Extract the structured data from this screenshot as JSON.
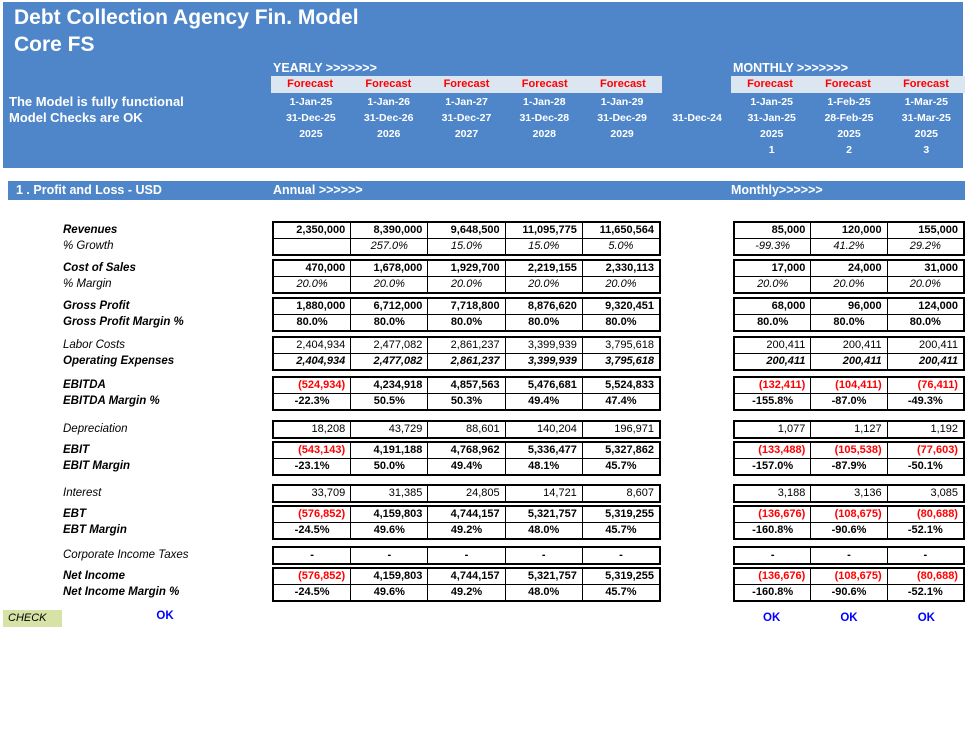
{
  "colors": {
    "header_blue": "#4E86C9",
    "band_bg": "#DCE6F1",
    "forecast_red": "#FF0000",
    "negative_red": "#FF0000",
    "ok_blue": "#0000FF",
    "check_green": "#D7E3A6"
  },
  "header": {
    "title_line1": "Debt Collection Agency Fin. Model",
    "title_line2": "Core FS",
    "status_line1": "The Model is fully functional",
    "status_line2": "Model Checks are OK",
    "yearly_label": "YEARLY >>>>>>>",
    "monthly_label": "MONTHLY >>>>>>>",
    "prior_period_end": "31-Dec-24",
    "yearly_columns": [
      {
        "forecast": "Forecast",
        "start": "1-Jan-25",
        "end": "31-Dec-25",
        "year": "2025"
      },
      {
        "forecast": "Forecast",
        "start": "1-Jan-26",
        "end": "31-Dec-26",
        "year": "2026"
      },
      {
        "forecast": "Forecast",
        "start": "1-Jan-27",
        "end": "31-Dec-27",
        "year": "2027"
      },
      {
        "forecast": "Forecast",
        "start": "1-Jan-28",
        "end": "31-Dec-28",
        "year": "2028"
      },
      {
        "forecast": "Forecast",
        "start": "1-Jan-29",
        "end": "31-Dec-29",
        "year": "2029"
      }
    ],
    "monthly_columns": [
      {
        "forecast": "Forecast",
        "start": "1-Jan-25",
        "end": "31-Jan-25",
        "year": "2025",
        "period": "1"
      },
      {
        "forecast": "Forecast",
        "start": "1-Feb-25",
        "end": "28-Feb-25",
        "year": "2025",
        "period": "2"
      },
      {
        "forecast": "Forecast",
        "start": "1-Mar-25",
        "end": "31-Mar-25",
        "year": "2025",
        "period": "3"
      }
    ]
  },
  "section": {
    "title": "1 . Profit and Loss - USD",
    "annual_label": "Annual >>>>>>",
    "monthly_label": "Monthly>>>>>>"
  },
  "table": {
    "groups": [
      {
        "rows": [
          {
            "label": "Revenues",
            "label_style": "bi",
            "value_style": "b",
            "annual": [
              "2,350,000",
              "8,390,000",
              "9,648,500",
              "11,095,775",
              "11,650,564"
            ],
            "monthly": [
              "85,000",
              "120,000",
              "155,000"
            ]
          },
          {
            "label": "% Growth",
            "label_style": "i",
            "value_style": "i",
            "annual": [
              "",
              "257.0%",
              "15.0%",
              "15.0%",
              "5.0%"
            ],
            "monthly": [
              "-99.3%",
              "41.2%",
              "29.2%"
            ]
          }
        ]
      },
      {
        "rows": [
          {
            "label": "Cost of Sales",
            "label_style": "bi",
            "value_style": "b",
            "annual": [
              "470,000",
              "1,678,000",
              "1,929,700",
              "2,219,155",
              "2,330,113"
            ],
            "monthly": [
              "17,000",
              "24,000",
              "31,000"
            ]
          },
          {
            "label": "% Margin",
            "label_style": "i",
            "value_style": "i",
            "annual": [
              "20.0%",
              "20.0%",
              "20.0%",
              "20.0%",
              "20.0%"
            ],
            "monthly": [
              "20.0%",
              "20.0%",
              "20.0%"
            ]
          }
        ]
      },
      {
        "rows": [
          {
            "label": "Gross Profit",
            "label_style": "bi",
            "value_style": "b",
            "annual": [
              "1,880,000",
              "6,712,000",
              "7,718,800",
              "8,876,620",
              "9,320,451"
            ],
            "monthly": [
              "68,000",
              "96,000",
              "124,000"
            ]
          },
          {
            "label": "Gross Profit Margin %",
            "label_style": "bi",
            "value_style": "b",
            "annual": [
              "80.0%",
              "80.0%",
              "80.0%",
              "80.0%",
              "80.0%"
            ],
            "monthly": [
              "80.0%",
              "80.0%",
              "80.0%"
            ]
          }
        ]
      },
      {
        "rows": [
          {
            "label": "Labor Costs",
            "label_style": "i",
            "value_style": "r",
            "annual": [
              "2,404,934",
              "2,477,082",
              "2,861,237",
              "3,399,939",
              "3,795,618"
            ],
            "monthly": [
              "200,411",
              "200,411",
              "200,411"
            ]
          },
          {
            "label": "Operating Expenses",
            "label_style": "bi",
            "value_style": "bi",
            "annual": [
              "2,404,934",
              "2,477,082",
              "2,861,237",
              "3,399,939",
              "3,795,618"
            ],
            "monthly": [
              "200,411",
              "200,411",
              "200,411"
            ]
          }
        ]
      },
      {
        "rows": [
          {
            "label": "EBITDA",
            "label_style": "bi",
            "value_style": "b",
            "annual": [
              "(524,934)",
              "4,234,918",
              "4,857,563",
              "5,476,681",
              "5,524,833"
            ],
            "monthly": [
              "(132,411)",
              "(104,411)",
              "(76,411)"
            ]
          },
          {
            "label": "EBITDA Margin %",
            "label_style": "bi",
            "value_style": "b",
            "annual": [
              "-22.3%",
              "50.5%",
              "50.3%",
              "49.4%",
              "47.4%"
            ],
            "monthly": [
              "-155.8%",
              "-87.0%",
              "-49.3%"
            ]
          }
        ]
      },
      {
        "rows": [
          {
            "label": "Depreciation",
            "label_style": "i",
            "value_style": "r",
            "annual": [
              "18,208",
              "43,729",
              "88,601",
              "140,204",
              "196,971"
            ],
            "monthly": [
              "1,077",
              "1,127",
              "1,192"
            ]
          }
        ]
      },
      {
        "rows": [
          {
            "label": "EBIT",
            "label_style": "bi",
            "value_style": "b",
            "annual": [
              "(543,143)",
              "4,191,188",
              "4,768,962",
              "5,336,477",
              "5,327,862"
            ],
            "monthly": [
              "(133,488)",
              "(105,538)",
              "(77,603)"
            ]
          },
          {
            "label": "EBIT Margin",
            "label_style": "bi",
            "value_style": "b",
            "annual": [
              "-23.1%",
              "50.0%",
              "49.4%",
              "48.1%",
              "45.7%"
            ],
            "monthly": [
              "-157.0%",
              "-87.9%",
              "-50.1%"
            ]
          }
        ]
      },
      {
        "rows": [
          {
            "label": "Interest",
            "label_style": "i",
            "value_style": "r",
            "annual": [
              "33,709",
              "31,385",
              "24,805",
              "14,721",
              "8,607"
            ],
            "monthly": [
              "3,188",
              "3,136",
              "3,085"
            ]
          }
        ]
      },
      {
        "rows": [
          {
            "label": "EBT",
            "label_style": "bi",
            "value_style": "b",
            "annual": [
              "(576,852)",
              "4,159,803",
              "4,744,157",
              "5,321,757",
              "5,319,255"
            ],
            "monthly": [
              "(136,676)",
              "(108,675)",
              "(80,688)"
            ]
          },
          {
            "label": "EBT Margin",
            "label_style": "bi",
            "value_style": "b",
            "annual": [
              "-24.5%",
              "49.6%",
              "49.2%",
              "48.0%",
              "45.7%"
            ],
            "monthly": [
              "-160.8%",
              "-90.6%",
              "-52.1%"
            ]
          }
        ]
      },
      {
        "rows": [
          {
            "label": "Corporate Income Taxes",
            "label_style": "i",
            "value_style": "b",
            "annual": [
              "-",
              "-",
              "-",
              "-",
              "-"
            ],
            "monthly": [
              "-",
              "-",
              "-"
            ]
          }
        ]
      },
      {
        "rows": [
          {
            "label": "Net Income",
            "label_style": "bi",
            "value_style": "b",
            "annual": [
              "(576,852)",
              "4,159,803",
              "4,744,157",
              "5,321,757",
              "5,319,255"
            ],
            "monthly": [
              "(136,676)",
              "(108,675)",
              "(80,688)"
            ]
          },
          {
            "label": "Net Income Margin %",
            "label_style": "bi",
            "value_style": "b",
            "annual": [
              "-24.5%",
              "49.6%",
              "49.2%",
              "48.0%",
              "45.7%"
            ],
            "monthly": [
              "-160.8%",
              "-90.6%",
              "-52.1%"
            ]
          }
        ]
      }
    ]
  },
  "check": {
    "label": "CHECK",
    "annual_ok": "OK",
    "monthly_oks": [
      "OK",
      "OK",
      "OK"
    ]
  }
}
